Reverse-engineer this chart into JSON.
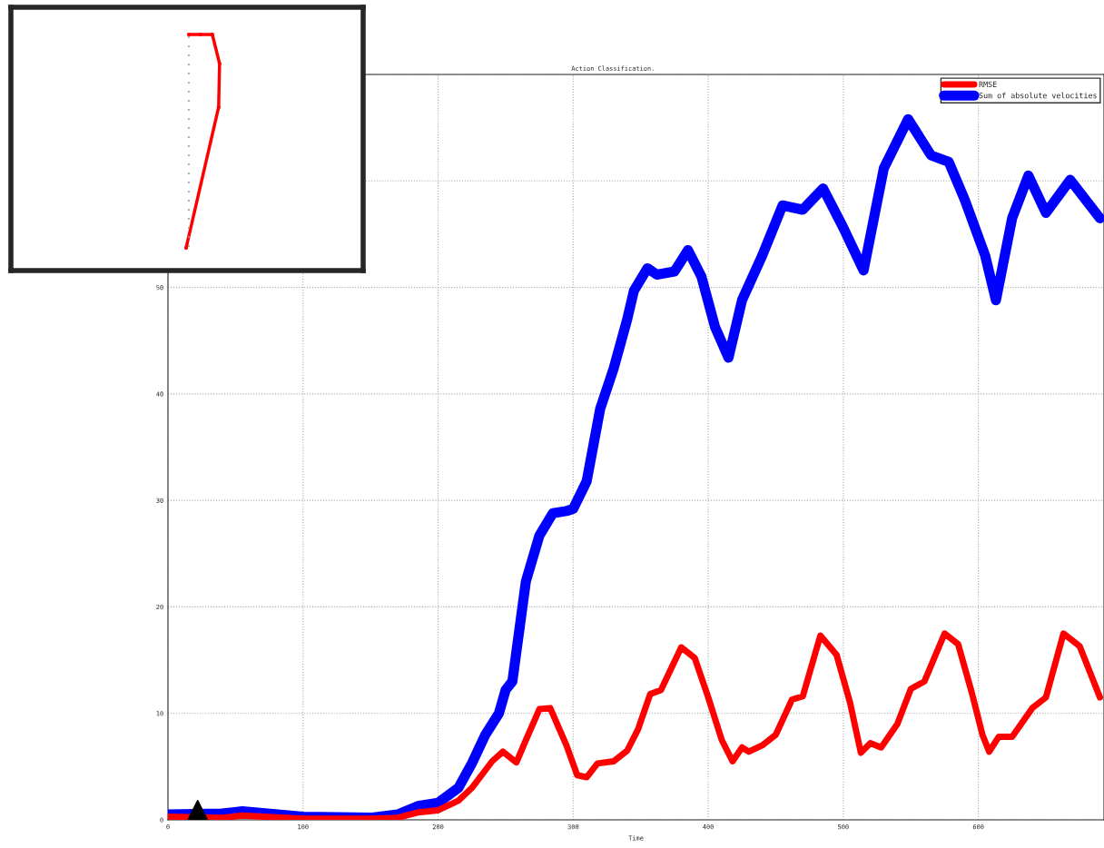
{
  "chart_data": {
    "type": "line",
    "title": "Action Classification.",
    "xlabel": "Time",
    "xlim": [
      0,
      693
    ],
    "xticks": [
      0,
      100,
      200,
      300,
      400,
      500,
      600
    ],
    "ylim": [
      0,
      70
    ],
    "yticks": [
      0,
      10,
      20,
      30,
      40,
      50,
      {
        "value": 60,
        "label": null
      },
      {
        "value": 70,
        "label": null
      }
    ],
    "grid": true,
    "legend": "top right",
    "line_style": "solid",
    "marker": "none",
    "series": [
      {
        "name": "RMSE",
        "color": "#ff0000",
        "x": [
          0,
          40,
          55,
          100,
          150,
          170,
          185,
          200,
          215,
          225,
          240,
          248,
          258,
          265,
          275,
          283,
          295,
          303,
          310,
          318,
          330,
          340,
          348,
          357,
          365,
          380,
          390,
          400,
          410,
          418,
          425,
          430,
          440,
          450,
          462,
          470,
          483,
          495,
          505,
          513,
          520,
          528,
          540,
          550,
          560,
          575,
          585,
          595,
          603,
          608,
          615,
          625,
          640,
          650,
          663,
          675,
          690
        ],
        "values": [
          0.3,
          0.2,
          0.4,
          0.1,
          0.1,
          0.2,
          0.7,
          0.9,
          1.8,
          3,
          5.5,
          6.4,
          5.4,
          7.5,
          10.4,
          10.5,
          7,
          4.2,
          4,
          5.3,
          5.5,
          6.5,
          8.5,
          11.8,
          12.2,
          16.2,
          15.2,
          11.5,
          7.5,
          5.5,
          6.8,
          6.4,
          7,
          8,
          11.3,
          11.6,
          17.3,
          15.5,
          11,
          6.3,
          7.2,
          6.8,
          9,
          12.3,
          13,
          17.5,
          16.5,
          12,
          8,
          6.4,
          7.8,
          7.8,
          10.5,
          11.5,
          17.5,
          16.3,
          11.5
        ]
      },
      {
        "name": "Sum of absolute velocities",
        "color": "#0000ff",
        "x": [
          0,
          40,
          55,
          100,
          150,
          170,
          185,
          200,
          215,
          225,
          235,
          245,
          250,
          255,
          265,
          275,
          285,
          295,
          300,
          310,
          320,
          330,
          340,
          345,
          355,
          362,
          375,
          385,
          395,
          405,
          415,
          425,
          440,
          455,
          470,
          485,
          500,
          515,
          530,
          548,
          565,
          578,
          590,
          605,
          613,
          625,
          637,
          650,
          668,
          690
        ],
        "values": [
          0.5,
          0.6,
          0.8,
          0.3,
          0.2,
          0.5,
          1.3,
          1.6,
          3,
          5.3,
          8,
          10,
          12.2,
          13,
          22.4,
          26.7,
          28.8,
          29,
          29.2,
          31.8,
          38.6,
          42.4,
          47,
          49.7,
          51.8,
          51.2,
          51.5,
          53.5,
          51,
          46.3,
          43.4,
          48.8,
          53,
          57.7,
          57.3,
          59.3,
          55.6,
          51.6,
          61.2,
          65.8,
          62.4,
          61.8,
          58.2,
          53,
          48.8,
          56.5,
          60.5,
          57,
          60.1,
          56.5
        ]
      },
      {
        "type": "scatter",
        "marker": "triangle",
        "color": "#000000",
        "x": [
          22
        ],
        "values": [
          0.5
        ]
      }
    ]
  }
}
